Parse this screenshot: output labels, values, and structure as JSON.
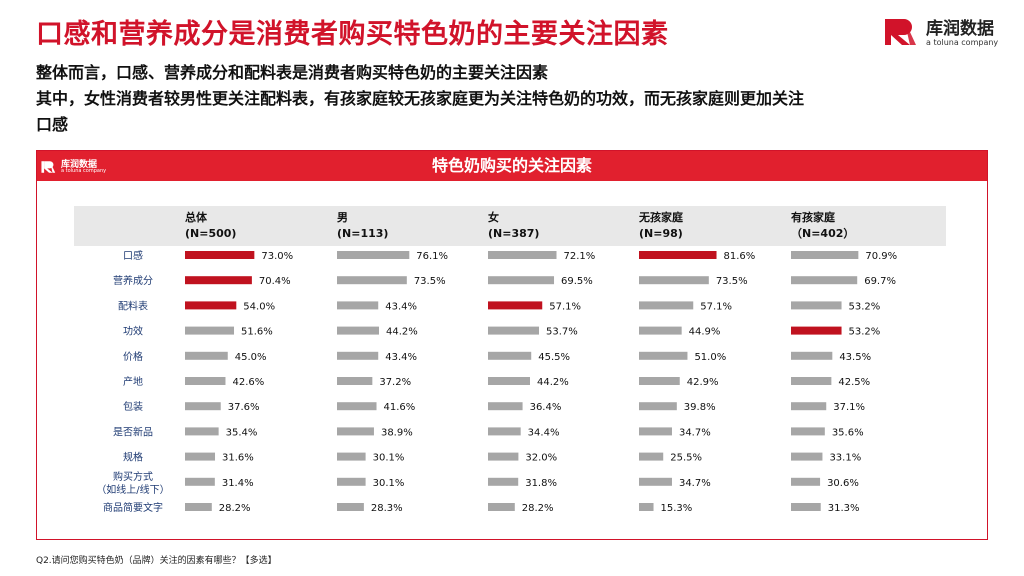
{
  "title": "口感和营养成分是消费者购买特色奶的主要关注因素",
  "brand": {
    "name": "库润数据",
    "tagline": "a toluna company"
  },
  "summary": [
    "整体而言，口感、营养成分和配料表是消费者购买特色奶的主要关注因素",
    "其中，女性消费者较男性更关注配料表，有孩家庭较无孩家庭更为关注特色奶的功效，而无孩家庭则更加关注",
    "口感"
  ],
  "panel": {
    "title": "特色奶购买的关注因素",
    "logo_name": "库润数据",
    "logo_tagline": "a toluna company"
  },
  "colors": {
    "brand_red": "#d1132a",
    "highlight_bar": "#c0121f",
    "normal_bar": "#a6a6a6",
    "header_band": "#e8e8e8"
  },
  "chart_data": {
    "type": "bar",
    "orientation": "horizontal",
    "categories": [
      "口感",
      "营养成分",
      "配料表",
      "功效",
      "价格",
      "产地",
      "包装",
      "是否新品",
      "规格",
      "购买方式\n（如线上/线下）",
      "商品简要文字"
    ],
    "series": [
      {
        "name": "总体",
        "n_label": "(N=500)",
        "values": [
          73.0,
          70.4,
          54.0,
          51.6,
          45.0,
          42.6,
          37.6,
          35.4,
          31.6,
          31.4,
          28.2
        ],
        "highlight": [
          0,
          1,
          2
        ]
      },
      {
        "name": "男",
        "n_label": "(N=113)",
        "values": [
          76.1,
          73.5,
          43.4,
          44.2,
          43.4,
          37.2,
          41.6,
          38.9,
          30.1,
          30.1,
          28.3
        ],
        "highlight": []
      },
      {
        "name": "女",
        "n_label": "(N=387)",
        "values": [
          72.1,
          69.5,
          57.1,
          53.7,
          45.5,
          44.2,
          36.4,
          34.4,
          32.0,
          31.8,
          28.2
        ],
        "highlight": [
          2
        ]
      },
      {
        "name": "无孩家庭",
        "n_label": "(N=98)",
        "values": [
          81.6,
          73.5,
          57.1,
          44.9,
          51.0,
          42.9,
          39.8,
          34.7,
          25.5,
          34.7,
          15.3
        ],
        "highlight": [
          0
        ]
      },
      {
        "name": "有孩家庭",
        "n_label": "（N=402）",
        "values": [
          70.9,
          69.7,
          53.2,
          53.2,
          43.5,
          42.5,
          37.1,
          35.6,
          33.1,
          30.6,
          31.3
        ],
        "highlight": [
          3
        ]
      }
    ],
    "value_format": "percent_1dp"
  },
  "footnote": "Q2.请问您购买特色奶（品牌）关注的因素有哪些？【多选】"
}
